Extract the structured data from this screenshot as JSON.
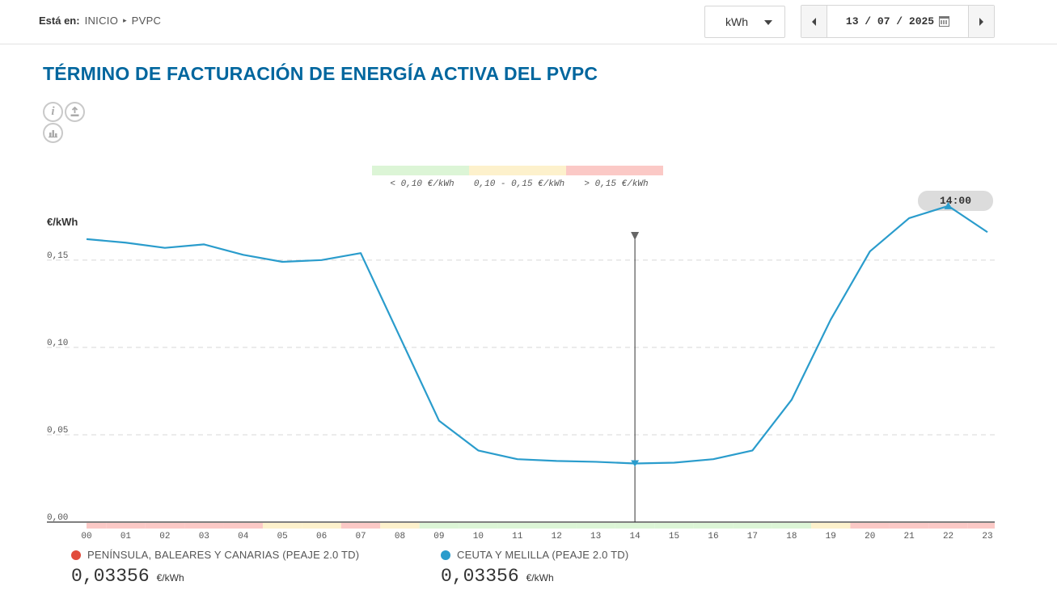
{
  "breadcrumb": {
    "label": "Está en:",
    "items": [
      "INICIO",
      "PVPC"
    ]
  },
  "unit_select": {
    "value": "kWh"
  },
  "date_picker": {
    "value": "13 / 07 / 2025"
  },
  "title": "TÉRMINO DE FACTURACIÓN DE ENERGÍA ACTIVA DEL PVPC",
  "tool_icons": [
    "info-icon",
    "download-icon",
    "chart-icon"
  ],
  "price_ranges": [
    {
      "label": "< 0,10 €/kWh",
      "color": "#dcf5d6"
    },
    {
      "label": "0,10 - 0,15 €/kWh",
      "color": "#fdf1cc"
    },
    {
      "label": "> 0,15 €/kWh",
      "color": "#fbc9c6"
    }
  ],
  "selected_time": "14:00",
  "chart_data": {
    "type": "line",
    "ylabel": "€/kWh",
    "ylim": [
      0,
      0.18
    ],
    "yticks": [
      0,
      0.05,
      0.1,
      0.15
    ],
    "ytick_labels": [
      "0,00",
      "0,05",
      "0,10",
      "0,15"
    ],
    "grid": "horizontal-dashed",
    "categories": [
      "00",
      "01",
      "02",
      "03",
      "04",
      "05",
      "06",
      "07",
      "08",
      "09",
      "10",
      "11",
      "12",
      "13",
      "14",
      "15",
      "16",
      "17",
      "18",
      "19",
      "20",
      "21",
      "22",
      "23"
    ],
    "hour_bands": [
      "high",
      "high",
      "high",
      "high",
      "high",
      "mid",
      "mid",
      "high",
      "mid",
      "low",
      "low",
      "low",
      "low",
      "low",
      "low",
      "low",
      "low",
      "low",
      "low",
      "mid",
      "high",
      "high",
      "high",
      "high"
    ],
    "series": [
      {
        "name": "CEUTA Y MELILLA (PEAJE 2.0 TD)",
        "color": "#2a9ccc",
        "values": [
          0.162,
          0.16,
          0.157,
          0.159,
          0.153,
          0.149,
          0.15,
          0.154,
          0.106,
          0.058,
          0.041,
          0.036,
          0.035,
          0.0345,
          0.03356,
          0.034,
          0.036,
          0.041,
          0.07,
          0.116,
          0.155,
          0.174,
          0.181,
          0.166
        ]
      }
    ],
    "selected_index": 14,
    "max_index": 22
  },
  "legend": [
    {
      "name": "PENÍNSULA, BALEARES Y CANARIAS (PEAJE 2.0 TD)",
      "color": "#e14b3b",
      "value": "0,03356",
      "unit": "€/kWh"
    },
    {
      "name": "CEUTA Y MELILLA (PEAJE 2.0 TD)",
      "color": "#2a9ccc",
      "value": "0,03356",
      "unit": "€/kWh"
    }
  ]
}
